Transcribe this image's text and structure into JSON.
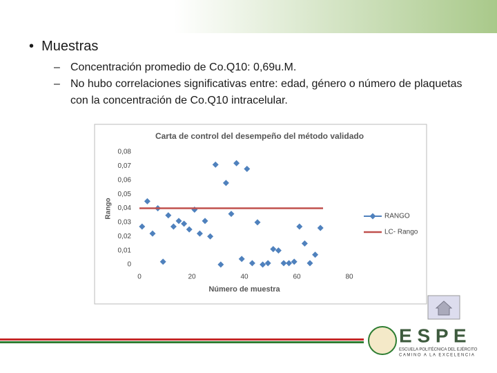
{
  "slide": {
    "bullet": "Muestras",
    "items": [
      "Concentración promedio de Co.Q10: 0,69u.M.",
      "No hubo correlaciones significativas entre: edad, género o número de plaquetas con la concentración de Co.Q10 intracelular."
    ],
    "logo": {
      "letters": "E S P E",
      "name": "ESCUELA POLITÉCNICA DEL EJÉRCITO",
      "motto": "CAMINO A LA EXCELENCIA"
    }
  },
  "chart_data": {
    "type": "scatter",
    "title": "Carta de control del desempeño del método validado",
    "x_label": "Número de muestra",
    "y_label": "Rango",
    "series": [
      {
        "name": "RANGO",
        "color": "#4f81bd",
        "x": [
          1,
          3,
          5,
          7,
          9,
          11,
          13,
          15,
          17,
          19,
          21,
          23,
          25,
          27,
          29,
          31,
          33,
          35,
          37,
          39,
          41,
          43,
          45,
          47,
          49,
          51,
          53,
          55,
          57,
          59,
          61,
          63,
          65,
          67,
          69
        ],
        "values": [
          0.027,
          0.045,
          0.022,
          0.04,
          0.002,
          0.035,
          0.027,
          0.031,
          0.029,
          0.025,
          0.039,
          0.022,
          0.031,
          0.02,
          0.071,
          0,
          0.058,
          0.036,
          0.072,
          0.004,
          0.068,
          0.001,
          0.03,
          0,
          0.001,
          0.011,
          0.01,
          0.001,
          0.001,
          0.002,
          0.027,
          0.015,
          0.001,
          0.007,
          0.026
        ]
      },
      {
        "name": "LC- Rango",
        "color": "#c0504d",
        "x": [
          0,
          70
        ],
        "values": [
          0.04,
          0.04
        ],
        "line": true
      }
    ],
    "xlim": [
      0,
      80
    ],
    "xticks": [
      0,
      20,
      40,
      60,
      80
    ],
    "ylim": [
      0,
      0.08
    ],
    "yticks": [
      {
        "value": 0.08,
        "label": "0,08"
      },
      {
        "value": 0.07,
        "label": "0,07"
      },
      {
        "value": 0.06,
        "label": "0,06"
      },
      {
        "value": 0.05,
        "label": "0,05"
      },
      {
        "value": 0.04,
        "label": "0,04"
      },
      {
        "value": 0.03,
        "label": "0,03"
      },
      {
        "value": 0.02,
        "label": "0,02"
      },
      {
        "value": 0.01,
        "label": "0,01"
      },
      0
    ]
  }
}
